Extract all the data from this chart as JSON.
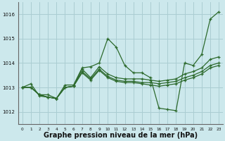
{
  "background_color": "#cce8ec",
  "grid_color": "#aacdd2",
  "line_color": "#2d6a2d",
  "xlabel": "Graphe pression niveau de la mer (hPa)",
  "xlabel_fontsize": 7,
  "xlim": [
    -0.5,
    23.5
  ],
  "ylim": [
    1011.5,
    1016.5
  ],
  "yticks": [
    1012,
    1013,
    1014,
    1015,
    1016
  ],
  "xticks": [
    0,
    1,
    2,
    3,
    4,
    5,
    6,
    7,
    8,
    9,
    10,
    11,
    12,
    13,
    14,
    15,
    16,
    17,
    18,
    19,
    20,
    21,
    22,
    23
  ],
  "series": [
    [
      1013.0,
      1013.0,
      1012.7,
      1012.6,
      1012.55,
      1013.1,
      1013.1,
      1013.8,
      1013.85,
      1014.0,
      1015.0,
      1014.65,
      1013.9,
      1013.6,
      1013.6,
      1013.4,
      1012.15,
      1012.1,
      1012.05,
      1014.0,
      1013.9,
      1014.35,
      1015.8,
      1016.1
    ],
    [
      1013.0,
      1013.0,
      1012.7,
      1012.6,
      1012.55,
      1013.0,
      1013.05,
      1013.75,
      1013.4,
      1013.85,
      1013.55,
      1013.4,
      1013.35,
      1013.35,
      1013.35,
      1013.3,
      1013.25,
      1013.3,
      1013.35,
      1013.55,
      1013.65,
      1013.8,
      1014.15,
      1014.25
    ],
    [
      1013.0,
      1013.0,
      1012.7,
      1012.7,
      1012.55,
      1013.0,
      1013.05,
      1013.65,
      1013.35,
      1013.75,
      1013.45,
      1013.3,
      1013.25,
      1013.25,
      1013.2,
      1013.2,
      1013.15,
      1013.2,
      1013.25,
      1013.4,
      1013.5,
      1013.65,
      1013.9,
      1014.0
    ],
    [
      1013.0,
      1013.15,
      1012.65,
      1012.6,
      1012.55,
      1013.0,
      1013.05,
      1013.6,
      1013.3,
      1013.7,
      1013.4,
      1013.25,
      1013.2,
      1013.2,
      1013.15,
      1013.1,
      1013.05,
      1013.1,
      1013.15,
      1013.3,
      1013.4,
      1013.55,
      1013.8,
      1013.9
    ]
  ]
}
